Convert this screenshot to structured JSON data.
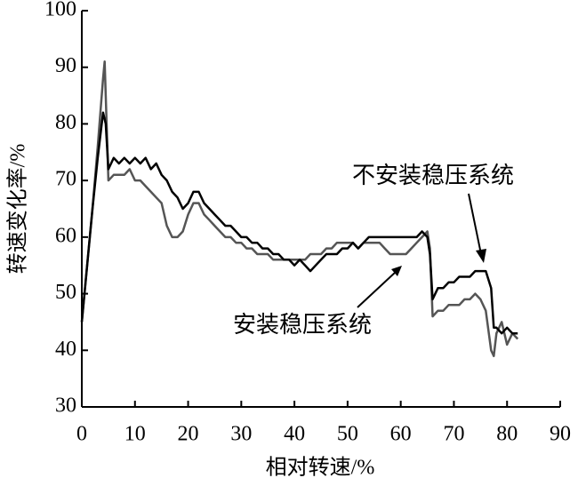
{
  "chart_data": {
    "type": "line",
    "x_label": "相对转速/%",
    "y_label": "转速变化率/%",
    "xlim": [
      0,
      90
    ],
    "ylim": [
      30,
      100
    ],
    "xticks": [
      0,
      10,
      20,
      30,
      40,
      50,
      60,
      70,
      80,
      90
    ],
    "yticks": [
      30,
      40,
      50,
      60,
      70,
      80,
      90,
      100
    ],
    "grid": false,
    "series": [
      {
        "name": "不安装稳压系统",
        "color": "#000000",
        "x": [
          0,
          1,
          2,
          3,
          4,
          4.5,
          5,
          6,
          7,
          8,
          9,
          10,
          11,
          12,
          13,
          14,
          15,
          16,
          17,
          18,
          19,
          20,
          21,
          22,
          23,
          24,
          25,
          26,
          27,
          28,
          29,
          30,
          31,
          32,
          33,
          34,
          35,
          36,
          37,
          38,
          39,
          40,
          41,
          42,
          43,
          44,
          45,
          46,
          47,
          48,
          49,
          50,
          51,
          52,
          53,
          54,
          55,
          56,
          57,
          58,
          59,
          60,
          61,
          62,
          63,
          64,
          65,
          65.5,
          66,
          67,
          68,
          69,
          70,
          71,
          72,
          73,
          74,
          75,
          76,
          77,
          77.5,
          78,
          79,
          80,
          81,
          82
        ],
        "values": [
          45,
          55,
          65,
          74,
          82,
          80,
          72,
          74,
          73,
          74,
          73,
          74,
          73,
          74,
          72,
          73,
          71,
          70,
          68,
          67,
          65,
          66,
          68,
          68,
          66,
          65,
          64,
          63,
          62,
          62,
          61,
          60,
          60,
          59,
          59,
          58,
          58,
          57,
          57,
          56,
          56,
          55,
          56,
          55,
          54,
          55,
          56,
          57,
          57,
          57,
          58,
          58,
          59,
          58,
          59,
          60,
          60,
          60,
          60,
          60,
          60,
          60,
          60,
          60,
          60,
          61,
          60,
          57,
          49,
          51,
          51,
          52,
          52,
          53,
          53,
          53,
          54,
          54,
          54,
          51,
          44,
          44,
          43,
          44,
          43,
          43
        ]
      },
      {
        "name": "安装稳压系统",
        "color": "#555555",
        "x": [
          0,
          1,
          2,
          3,
          4,
          4.3,
          5,
          6,
          7,
          8,
          9,
          10,
          11,
          12,
          13,
          14,
          15,
          16,
          17,
          18,
          19,
          20,
          21,
          22,
          23,
          24,
          25,
          26,
          27,
          28,
          29,
          30,
          31,
          32,
          33,
          34,
          35,
          36,
          37,
          38,
          39,
          40,
          41,
          42,
          43,
          44,
          45,
          46,
          47,
          48,
          49,
          50,
          51,
          52,
          53,
          54,
          55,
          56,
          57,
          58,
          59,
          60,
          61,
          62,
          63,
          64,
          65,
          65.5,
          66,
          67,
          68,
          69,
          70,
          71,
          72,
          73,
          74,
          75,
          76,
          77,
          77.5,
          78,
          79,
          80,
          81,
          82
        ],
        "values": [
          45,
          55,
          65,
          76,
          88,
          91,
          70,
          71,
          71,
          71,
          72,
          70,
          70,
          69,
          68,
          67,
          66,
          62,
          60,
          60,
          61,
          64,
          66,
          66,
          64,
          63,
          62,
          61,
          60,
          60,
          59,
          59,
          58,
          58,
          57,
          57,
          57,
          56,
          56,
          56,
          56,
          56,
          56,
          56,
          57,
          57,
          57,
          58,
          58,
          59,
          59,
          59,
          59,
          58,
          59,
          59,
          59,
          59,
          58,
          57,
          57,
          57,
          57,
          58,
          59,
          60,
          61,
          58,
          46,
          47,
          47,
          48,
          48,
          48,
          49,
          49,
          50,
          49,
          47,
          40,
          39,
          43,
          45,
          41,
          43,
          42
        ]
      }
    ]
  }
}
